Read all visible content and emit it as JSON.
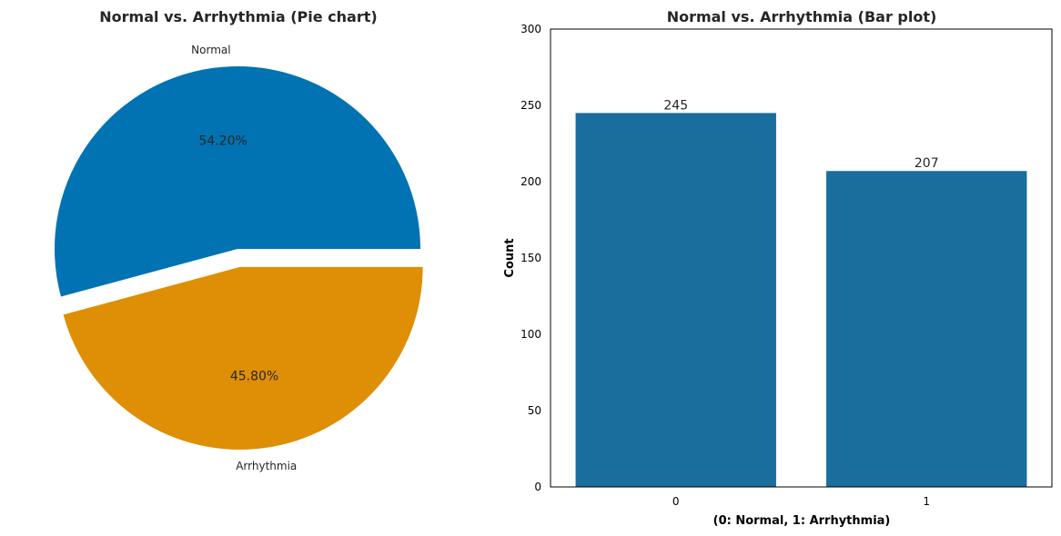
{
  "colors": {
    "pie": [
      "#0173b2",
      "#de8f05"
    ],
    "bar": "#1a6e9e",
    "frame": "#000000",
    "text": "#262626"
  },
  "chart_data": [
    {
      "type": "pie",
      "title": "Normal vs. Arrhythmia (Pie chart)",
      "labels": [
        "Normal",
        "Arrhythmia"
      ],
      "values": [
        245,
        207
      ],
      "percent_labels": [
        "54.20%",
        "45.80%"
      ],
      "explode": [
        0,
        0.1
      ],
      "legend": "none"
    },
    {
      "type": "bar",
      "title": "Normal vs. Arrhythmia (Bar plot)",
      "categories": [
        "0",
        "1"
      ],
      "values": [
        245,
        207
      ],
      "value_labels": [
        "245",
        "207"
      ],
      "xlabel": "(0: Normal, 1: Arrhythmia)",
      "ylabel": "Count",
      "ylim": [
        0,
        300
      ],
      "yticks": [
        0,
        50,
        100,
        150,
        200,
        250,
        300
      ],
      "ytick_labels": [
        "0",
        "50",
        "100",
        "150",
        "200",
        "250",
        "300"
      ],
      "grid": false
    }
  ]
}
